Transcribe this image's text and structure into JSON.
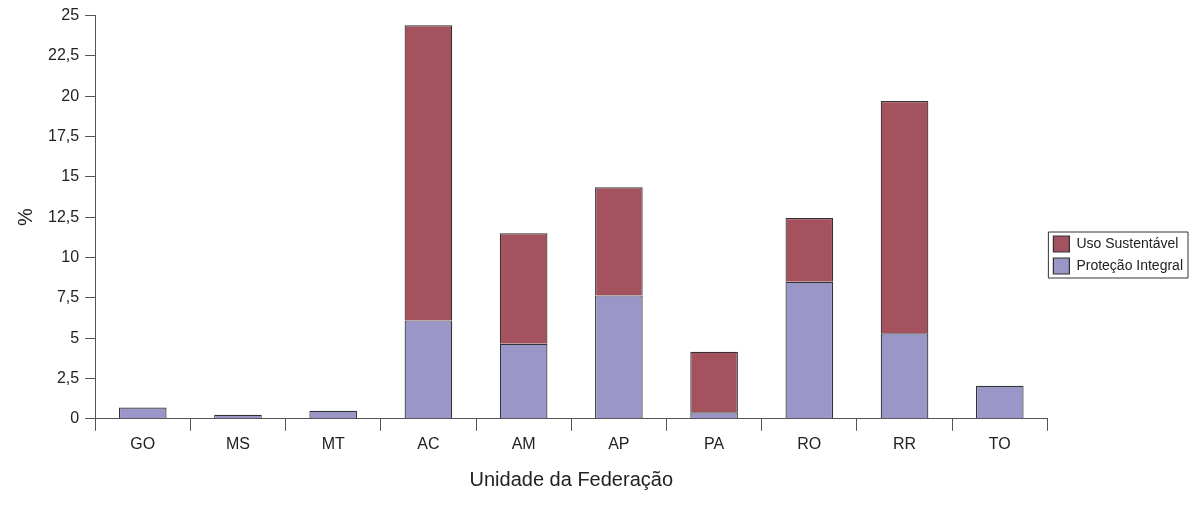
{
  "chart_data": {
    "type": "bar",
    "stacked": true,
    "xlabel": "Unidade da Federação",
    "ylabel": "%",
    "categories": [
      "GO",
      "MS",
      "MT",
      "AC",
      "AM",
      "AP",
      "PA",
      "RO",
      "RR",
      "TO"
    ],
    "series": [
      {
        "name": "Proteção Integral",
        "color": "#9b96c8",
        "values": [
          0.7,
          0.25,
          0.5,
          6.1,
          4.65,
          7.65,
          0.4,
          8.5,
          5.3,
          2.05
        ]
      },
      {
        "name": "Uso Sustentável",
        "color": "#a5525f",
        "values": [
          0,
          0,
          0,
          18.3,
          6.85,
          6.7,
          3.75,
          3.95,
          14.4,
          0
        ]
      }
    ],
    "ylim": [
      0,
      25
    ],
    "yticks": [
      0,
      {
        "value": 2.5,
        "label": "2,5"
      },
      5,
      {
        "value": 7.5,
        "label": "7,5"
      },
      10,
      {
        "value": 12.5,
        "label": "12,5"
      },
      15,
      {
        "value": 17.5,
        "label": "17,5"
      },
      20,
      {
        "value": 22.5,
        "label": "22,5"
      },
      25
    ],
    "grid": false,
    "legend": "right"
  }
}
